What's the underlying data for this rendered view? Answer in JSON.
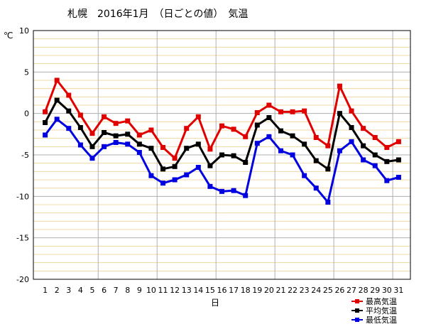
{
  "chart_data": {
    "type": "line",
    "title": "札幌　2016年1月　（日ごとの値）　気温",
    "ylabel": "℃",
    "xlabel": "日",
    "ylim": [
      -20,
      10
    ],
    "yticks": [
      10,
      5,
      0,
      -5,
      -10,
      -15,
      -20
    ],
    "x": [
      1,
      2,
      3,
      4,
      5,
      6,
      7,
      8,
      9,
      10,
      11,
      12,
      13,
      14,
      15,
      16,
      17,
      18,
      19,
      20,
      21,
      22,
      23,
      24,
      25,
      26,
      27,
      28,
      29,
      30,
      31
    ],
    "grid": true,
    "legend_position": "bottom-right",
    "series": [
      {
        "name": "最高気温",
        "color": "#e00000",
        "values": [
          0.2,
          4.0,
          2.2,
          -0.2,
          -2.4,
          -0.4,
          -1.2,
          -0.9,
          -2.6,
          -2.0,
          -4.1,
          -5.4,
          -1.8,
          -0.4,
          -4.3,
          -1.5,
          -1.9,
          -2.8,
          0.1,
          1.0,
          0.2,
          0.2,
          0.3,
          -2.9,
          -3.9,
          3.3,
          0.3,
          -1.8,
          -2.9,
          -4.1,
          -3.4
        ]
      },
      {
        "name": "平均気温",
        "color": "#000000",
        "values": [
          -1.1,
          1.6,
          0.3,
          -1.7,
          -4.0,
          -2.3,
          -2.7,
          -2.5,
          -3.7,
          -4.2,
          -6.7,
          -6.4,
          -4.2,
          -3.7,
          -6.3,
          -5.0,
          -5.1,
          -5.9,
          -1.4,
          -0.5,
          -2.1,
          -2.7,
          -3.7,
          -5.7,
          -6.7,
          0.0,
          -1.7,
          -3.9,
          -5.0,
          -5.8,
          -5.6
        ]
      },
      {
        "name": "最低気温",
        "color": "#0000e0",
        "values": [
          -2.6,
          -0.7,
          -1.8,
          -3.8,
          -5.4,
          -4.0,
          -3.5,
          -3.7,
          -4.7,
          -7.5,
          -8.4,
          -8.0,
          -7.4,
          -6.5,
          -8.8,
          -9.4,
          -9.3,
          -9.9,
          -3.6,
          -2.8,
          -4.5,
          -5.0,
          -7.5,
          -9.0,
          -10.7,
          -4.5,
          -3.4,
          -5.6,
          -6.3,
          -8.1,
          -7.7
        ]
      }
    ]
  }
}
